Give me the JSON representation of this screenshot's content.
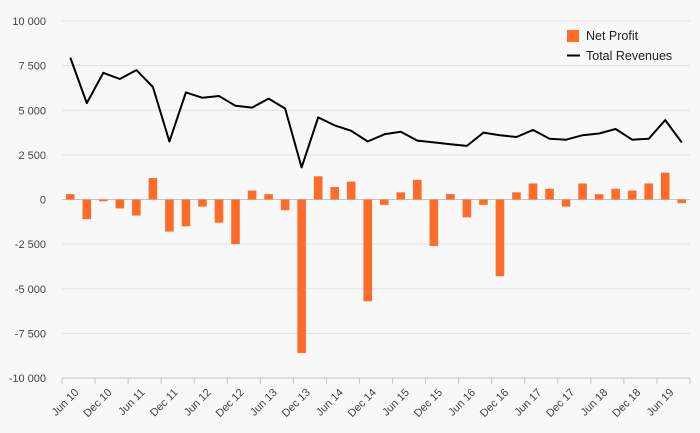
{
  "chart_data": {
    "type": "bar+line",
    "title": "",
    "xlabel": "",
    "ylabel": "",
    "ylim": [
      -10000,
      10000
    ],
    "yticks": [
      10000,
      7500,
      5000,
      2500,
      0,
      -2500,
      -5000,
      -7500,
      -10000
    ],
    "ytick_labels": [
      "10 000",
      "7 500",
      "5 000",
      "2 500",
      "0",
      "-2 500",
      "-5 000",
      "-7 500",
      "-10 000"
    ],
    "grid": true,
    "legend_position": "top-right",
    "x_tick_labels": [
      {
        "index": 0,
        "label": "Jun 10"
      },
      {
        "index": 2,
        "label": "Dec 10"
      },
      {
        "index": 4,
        "label": "Jun 11"
      },
      {
        "index": 6,
        "label": "Dec 11"
      },
      {
        "index": 8,
        "label": "Jun 12"
      },
      {
        "index": 10,
        "label": "Dec 12"
      },
      {
        "index": 12,
        "label": "Jun 13"
      },
      {
        "index": 14,
        "label": "Dec 13"
      },
      {
        "index": 16,
        "label": "Jun 14"
      },
      {
        "index": 18,
        "label": "Dec 14"
      },
      {
        "index": 20,
        "label": "Jun 15"
      },
      {
        "index": 22,
        "label": "Dec 15"
      },
      {
        "index": 24,
        "label": "Jun 16"
      },
      {
        "index": 26,
        "label": "Dec 16"
      },
      {
        "index": 28,
        "label": "Jun 17"
      },
      {
        "index": 30,
        "label": "Dec 17"
      },
      {
        "index": 32,
        "label": "Jun 18"
      },
      {
        "index": 34,
        "label": "Dec 18"
      },
      {
        "index": 36,
        "label": "Jun 19"
      }
    ],
    "series": [
      {
        "name": "Net Profit",
        "type": "bar",
        "color": "#ff6c2a",
        "values": [
          300,
          -1100,
          -100,
          -500,
          -900,
          1200,
          -1800,
          -1500,
          -400,
          -1300,
          -2500,
          500,
          300,
          -600,
          -8600,
          1300,
          700,
          1000,
          -5700,
          -300,
          400,
          1100,
          -2600,
          300,
          -1000,
          -300,
          -4300,
          400,
          900,
          600,
          -400,
          900,
          300,
          600,
          500,
          900,
          1500,
          -200
        ]
      },
      {
        "name": "Total Revenues",
        "type": "line",
        "color": "#000000",
        "values": [
          7950,
          5400,
          7100,
          6750,
          7250,
          6300,
          3250,
          6000,
          5700,
          5800,
          5250,
          5150,
          5650,
          5100,
          1800,
          4600,
          4150,
          3850,
          3250,
          3650,
          3800,
          3300,
          3200,
          3100,
          3000,
          3750,
          3600,
          3500,
          3900,
          3400,
          3350,
          3600,
          3700,
          3950,
          3350,
          3400,
          4450,
          3200
        ]
      }
    ]
  }
}
